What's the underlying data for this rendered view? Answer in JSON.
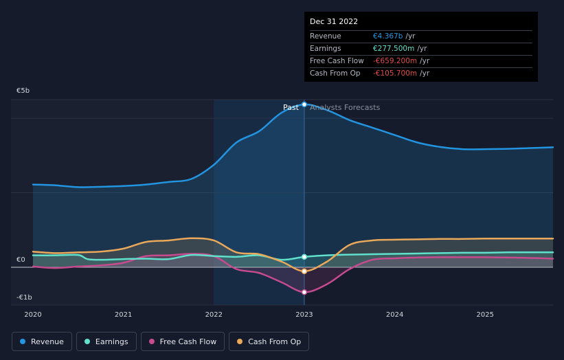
{
  "chart_data": {
    "type": "line",
    "currency": "€",
    "y_unit": "b",
    "ylim": [
      -1.0,
      4.5
    ],
    "xlim": [
      2020.0,
      2025.75
    ],
    "y_tick_labels": [
      {
        "value": 4.5,
        "label": "€5b"
      },
      {
        "value": 0,
        "label": "€0"
      },
      {
        "value": -1.0,
        "label": "-€1b"
      }
    ],
    "x_tick_labels": [
      {
        "value": 2020,
        "label": "2020"
      },
      {
        "value": 2021,
        "label": "2021"
      },
      {
        "value": 2022,
        "label": "2022"
      },
      {
        "value": 2023,
        "label": "2023"
      },
      {
        "value": 2024,
        "label": "2024"
      },
      {
        "value": 2025,
        "label": "2025"
      }
    ],
    "past_label": "Past",
    "forecast_label": "Analysts Forecasts",
    "divider_x": 2023.0,
    "shade_start_x": 2022.0,
    "series": [
      {
        "name": "Revenue",
        "color": "#2394df",
        "x": [
          2020.0,
          2020.25,
          2020.5,
          2020.75,
          2021.0,
          2021.25,
          2021.5,
          2021.75,
          2022.0,
          2022.25,
          2022.5,
          2022.75,
          2023.0,
          2023.25,
          2023.5,
          2023.75,
          2024.0,
          2024.25,
          2024.5,
          2024.75,
          2025.0,
          2025.25,
          2025.5,
          2025.75
        ],
        "values": [
          2.22,
          2.2,
          2.15,
          2.16,
          2.18,
          2.22,
          2.29,
          2.37,
          2.75,
          3.35,
          3.65,
          4.15,
          4.37,
          4.22,
          3.95,
          3.75,
          3.55,
          3.35,
          3.23,
          3.17,
          3.17,
          3.18,
          3.2,
          3.22
        ]
      },
      {
        "name": "Earnings",
        "color": "#5fe1cb",
        "x": [
          2020.0,
          2020.25,
          2020.5,
          2020.6,
          2020.75,
          2021.0,
          2021.25,
          2021.5,
          2021.75,
          2022.0,
          2022.25,
          2022.5,
          2022.75,
          2023.0,
          2023.25,
          2023.5,
          2023.75,
          2024.0,
          2024.25,
          2024.5,
          2024.75,
          2025.0,
          2025.25,
          2025.5,
          2025.75
        ],
        "values": [
          0.32,
          0.32,
          0.33,
          0.22,
          0.2,
          0.22,
          0.23,
          0.22,
          0.33,
          0.3,
          0.28,
          0.32,
          0.2,
          0.278,
          0.32,
          0.34,
          0.35,
          0.36,
          0.37,
          0.38,
          0.39,
          0.39,
          0.4,
          0.4,
          0.4
        ]
      },
      {
        "name": "Free Cash Flow",
        "color": "#c64b8e",
        "x": [
          2020.0,
          2020.25,
          2020.5,
          2020.75,
          2021.0,
          2021.25,
          2021.5,
          2021.75,
          2022.0,
          2022.25,
          2022.5,
          2022.75,
          2023.0,
          2023.25,
          2023.5,
          2023.75,
          2024.0,
          2024.25,
          2024.5,
          2024.75,
          2025.0,
          2025.25,
          2025.5,
          2025.75
        ],
        "values": [
          0.02,
          -0.02,
          0.02,
          0.05,
          0.12,
          0.3,
          0.32,
          0.36,
          0.3,
          -0.05,
          -0.15,
          -0.4,
          -0.659,
          -0.45,
          -0.05,
          0.2,
          0.24,
          0.26,
          0.27,
          0.27,
          0.27,
          0.26,
          0.25,
          0.23
        ]
      },
      {
        "name": "Cash From Op",
        "color": "#e9a85a",
        "x": [
          2020.0,
          2020.25,
          2020.5,
          2020.75,
          2021.0,
          2021.25,
          2021.5,
          2021.75,
          2022.0,
          2022.25,
          2022.5,
          2022.75,
          2023.0,
          2023.25,
          2023.5,
          2023.75,
          2024.0,
          2024.25,
          2024.5,
          2024.75,
          2025.0,
          2025.25,
          2025.5,
          2025.75
        ],
        "values": [
          0.42,
          0.38,
          0.4,
          0.42,
          0.5,
          0.68,
          0.72,
          0.78,
          0.72,
          0.4,
          0.35,
          0.15,
          -0.106,
          0.15,
          0.6,
          0.72,
          0.74,
          0.75,
          0.76,
          0.76,
          0.77,
          0.77,
          0.77,
          0.77
        ]
      }
    ]
  },
  "tooltip": {
    "date": "Dec 31 2022",
    "rows": [
      {
        "label": "Revenue",
        "value": "€4.367b",
        "unit": "/yr",
        "color": "#2394df"
      },
      {
        "label": "Earnings",
        "value": "€277.500m",
        "unit": "/yr",
        "color": "#5fe1cb"
      },
      {
        "label": "Free Cash Flow",
        "value": "-€659.200m",
        "unit": "/yr",
        "color": "#e24c4c"
      },
      {
        "label": "Cash From Op",
        "value": "-€105.700m",
        "unit": "/yr",
        "color": "#e24c4c"
      }
    ]
  },
  "legend": [
    {
      "label": "Revenue",
      "color": "#2394df"
    },
    {
      "label": "Earnings",
      "color": "#5fe1cb"
    },
    {
      "label": "Free Cash Flow",
      "color": "#c64b8e"
    },
    {
      "label": "Cash From Op",
      "color": "#e9a85a"
    }
  ]
}
